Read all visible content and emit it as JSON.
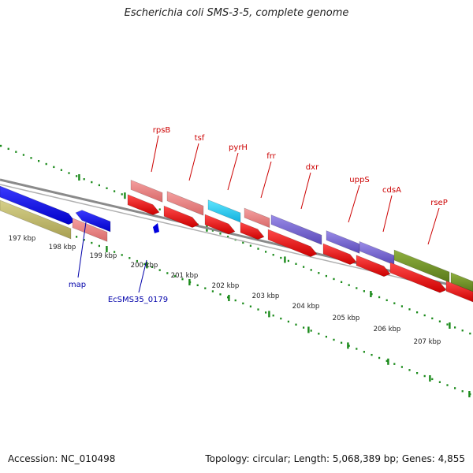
{
  "title": "Escherichia coli SMS-3-5, complete genome",
  "footer": {
    "accession": "Accession: NC_010498",
    "summary": "Topology: circular; Length: 5,068,389 bp; Genes: 4,855"
  },
  "colors": {
    "backbone": "#8a8a8a",
    "ticks": "#1a8a1a",
    "label_top": "#cc0000",
    "label_bottom": "#0000aa"
  },
  "kbp_labels": [
    "197 kbp",
    "198 kbp",
    "199 kbp",
    "200 kbp",
    "201 kbp",
    "202 kbp",
    "203 kbp",
    "204 kbp",
    "205 kbp",
    "206 kbp",
    "207 kbp"
  ],
  "gene_labels_top": [
    "rpsB",
    "tsf",
    "pyrH",
    "frr",
    "dxr",
    "uppS",
    "cdsA",
    "rseP"
  ],
  "gene_labels_bottom": [
    "map",
    "EcSMS35_0179"
  ]
}
